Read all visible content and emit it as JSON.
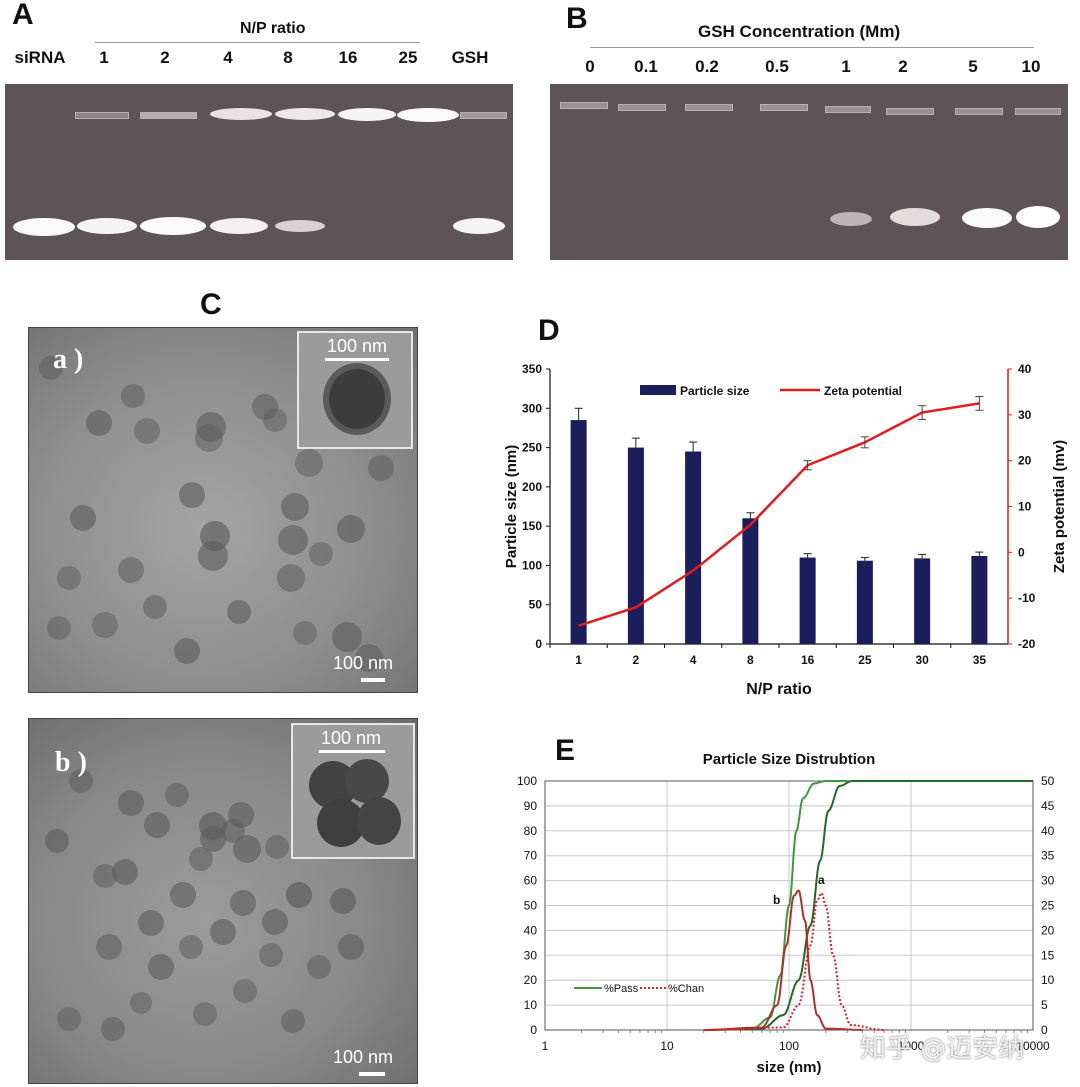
{
  "panel_a": {
    "letter": "A",
    "header": "N/P ratio",
    "lanes": [
      "siRNA",
      "1",
      "2",
      "4",
      "8",
      "16",
      "25",
      "GSH"
    ]
  },
  "panel_b": {
    "letter": "B",
    "header": "GSH Concentration (Mm)",
    "lanes": [
      "0",
      "0.1",
      "0.2",
      "0.5",
      "1",
      "2",
      "5",
      "10"
    ]
  },
  "panel_c": {
    "letter": "C",
    "images": [
      {
        "label": "a )",
        "inset_scale": "100 nm",
        "scale": "100 nm"
      },
      {
        "label": "b )",
        "inset_scale": "100 nm",
        "scale": "100 nm"
      }
    ]
  },
  "panel_d": {
    "letter": "D",
    "watermark": ""
  },
  "panel_e": {
    "letter": "E"
  },
  "watermark": "知乎 @迈安纳",
  "chart_data": [
    {
      "type": "bar",
      "panel": "D",
      "categories": [
        "1",
        "2",
        "4",
        "8",
        "16",
        "25",
        "30",
        "35"
      ],
      "xlabel": "N/P  ratio",
      "ylabel": "Particle size (nm)",
      "y2label": "Zeta potential (mv)",
      "ylim": [
        0,
        350
      ],
      "yticks": [
        0,
        50,
        100,
        150,
        200,
        250,
        300,
        350
      ],
      "y2lim": [
        -20,
        40
      ],
      "y2ticks": [
        -20,
        -10,
        0,
        10,
        20,
        30,
        40
      ],
      "legend_position": "top",
      "series": [
        {
          "name": "Particle size",
          "type": "bar",
          "axis": "left",
          "color": "#1a1f5c",
          "values": [
            285,
            250,
            245,
            160,
            110,
            106,
            109,
            112
          ],
          "errors": [
            15,
            12,
            12,
            7,
            5,
            4,
            5,
            5
          ]
        },
        {
          "name": "Zeta potential",
          "type": "line",
          "axis": "right",
          "color": "#e41a1c",
          "values": [
            -16,
            -12,
            -4,
            6,
            19,
            24,
            30.5,
            32.5
          ],
          "errors": [
            0,
            0,
            0,
            0,
            1,
            1.2,
            1.5,
            1.5
          ]
        }
      ]
    },
    {
      "type": "line",
      "panel": "E",
      "title": "Particle Size Distrubtion",
      "xlabel": "size (nm)",
      "xscale": "log",
      "xlim": [
        1,
        10000
      ],
      "xticks": [
        "1",
        "10",
        "100",
        "1000",
        "10000"
      ],
      "ylim": [
        0,
        100
      ],
      "yticks": [
        0,
        10,
        20,
        30,
        40,
        50,
        60,
        70,
        80,
        90,
        100
      ],
      "y2lim": [
        0,
        50
      ],
      "y2ticks": [
        0,
        5,
        10,
        15,
        20,
        25,
        30,
        35,
        40,
        45,
        50
      ],
      "legend": [
        "%Pass",
        "%Chan"
      ],
      "annotations": [
        "b",
        "a"
      ],
      "series": [
        {
          "name": "%Pass",
          "label": "b",
          "axis": "left",
          "color": "#3c9a3c",
          "style": "solid",
          "x": [
            20,
            50,
            70,
            85,
            100,
            115,
            130,
            160,
            200,
            300
          ],
          "y": [
            0,
            0.5,
            5,
            22,
            50,
            80,
            93,
            99,
            100,
            100
          ]
        },
        {
          "name": "%Pass",
          "label": "a",
          "axis": "left",
          "color": "#1f6b2a",
          "style": "solid",
          "x": [
            20,
            60,
            90,
            120,
            150,
            180,
            210,
            260,
            330,
            10000
          ],
          "y": [
            0,
            0.5,
            6,
            20,
            42,
            68,
            88,
            98,
            100,
            100
          ]
        },
        {
          "name": "%Chan",
          "label": "b",
          "axis": "right",
          "color": "#b03030",
          "style": "solid",
          "x": [
            20,
            60,
            80,
            95,
            110,
            120,
            135,
            150,
            170,
            200,
            400
          ],
          "y": [
            0,
            0.5,
            5,
            17,
            27,
            28,
            22,
            10,
            3,
            0.3,
            0
          ]
        },
        {
          "name": "%Chan",
          "label": "a",
          "axis": "right",
          "color": "#e41a1c",
          "style": "dotted",
          "x": [
            20,
            90,
            120,
            150,
            170,
            185,
            200,
            230,
            270,
            320,
            600
          ],
          "y": [
            0,
            0.5,
            5,
            17,
            26,
            27.5,
            25,
            15,
            5,
            1,
            0
          ]
        }
      ]
    }
  ]
}
